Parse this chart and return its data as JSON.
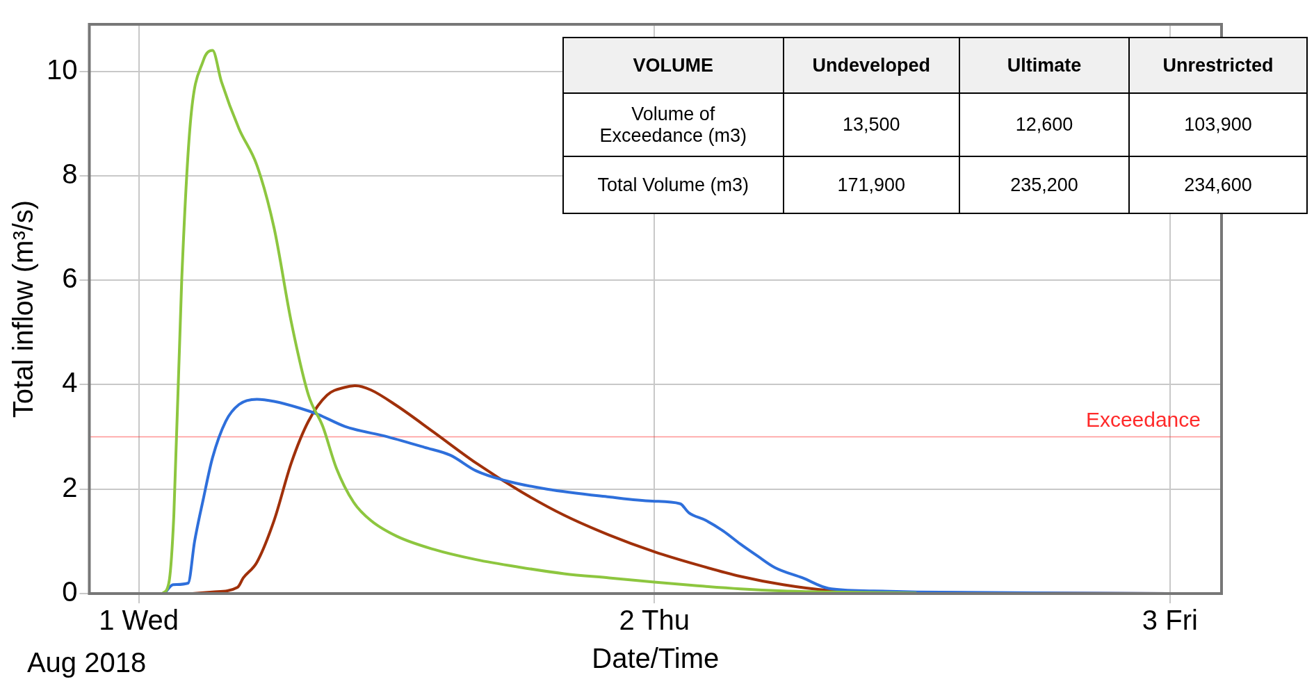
{
  "chart_data": {
    "type": "line",
    "xlabel": "Date/Time",
    "ylabel": "Total inflow (m³/s)",
    "xlim": [
      "2018-07-31T21:42",
      "2018-08-03T02:24"
    ],
    "ylim": [
      0,
      10.9
    ],
    "xticks": [
      {
        "value": "2018-08-01",
        "label": "1 Wed"
      },
      {
        "value": "2018-08-02",
        "label": "2 Thu"
      },
      {
        "value": "2018-08-03",
        "label": "3 Fri"
      }
    ],
    "yticks": [
      0,
      2,
      4,
      6,
      8,
      10
    ],
    "grid": true,
    "legend": false,
    "marker": "none",
    "line_style": "solid",
    "series": [
      {
        "color": "#8dc63f",
        "x": [
          "2018-08-01T01:06",
          "2018-08-01T01:24",
          "2018-08-01T01:38",
          "2018-08-01T02:00",
          "2018-08-01T02:24",
          "2018-08-01T03:00",
          "2018-08-01T03:26",
          "2018-08-01T03:51",
          "2018-08-01T04:40",
          "2018-08-01T05:30",
          "2018-08-01T06:18",
          "2018-08-01T07:06",
          "2018-08-01T07:54",
          "2018-08-01T08:34",
          "2018-08-01T09:12",
          "2018-08-01T10:00",
          "2018-08-01T10:48",
          "2018-08-01T12:00",
          "2018-08-01T13:42",
          "2018-08-01T15:42",
          "2018-08-01T17:48",
          "2018-08-01T19:48",
          "2018-08-01T21:54",
          "2018-08-02T00:00",
          "2018-08-02T02:00",
          "2018-08-02T04:00",
          "2018-08-02T06:00",
          "2018-08-02T08:06",
          "2018-08-02T12:12"
        ],
        "values": [
          0,
          0.2,
          1.5,
          6,
          9,
          10.2,
          10.4,
          9.8,
          8.9,
          8.2,
          7,
          5.2,
          3.8,
          3.2,
          2.4,
          1.75,
          1.4,
          1.1,
          0.85,
          0.65,
          0.5,
          0.38,
          0.3,
          0.22,
          0.15,
          0.09,
          0.05,
          0.03,
          0.01
        ]
      },
      {
        "color": "#2e6fdb",
        "x": [
          "2018-08-01T01:12",
          "2018-08-01T01:36",
          "2018-08-01T02:18",
          "2018-08-01T02:36",
          "2018-08-01T03:00",
          "2018-08-01T03:26",
          "2018-08-01T04:03",
          "2018-08-01T04:40",
          "2018-08-01T05:30",
          "2018-08-01T06:18",
          "2018-08-01T07:30",
          "2018-08-01T08:21",
          "2018-08-01T09:36",
          "2018-08-01T11:36",
          "2018-08-01T13:18",
          "2018-08-01T14:30",
          "2018-08-01T15:42",
          "2018-08-01T17:00",
          "2018-08-01T19:00",
          "2018-08-01T21:54",
          "2018-08-01T23:54",
          "2018-08-02T01:12",
          "2018-08-02T01:36",
          "2018-08-02T02:24",
          "2018-08-02T03:12",
          "2018-08-02T04:00",
          "2018-08-02T04:48",
          "2018-08-02T05:36",
          "2018-08-02T06:54",
          "2018-08-02T08:06",
          "2018-08-02T10:12",
          "2018-08-02T12:12",
          "2018-08-03T00:00"
        ],
        "values": [
          0,
          0.17,
          0.2,
          1.0,
          1.8,
          2.6,
          3.3,
          3.62,
          3.72,
          3.68,
          3.55,
          3.43,
          3.2,
          3.0,
          2.8,
          2.65,
          2.35,
          2.17,
          2.0,
          1.85,
          1.77,
          1.72,
          1.55,
          1.4,
          1.2,
          0.95,
          0.72,
          0.5,
          0.3,
          0.1,
          0.05,
          0.03,
          0
        ]
      },
      {
        "color": "#a0300a",
        "x": [
          "2018-08-01T02:30",
          "2018-08-01T03:26",
          "2018-08-01T04:36",
          "2018-08-01T04:52",
          "2018-08-01T05:30",
          "2018-08-01T06:18",
          "2018-08-01T07:06",
          "2018-08-01T07:54",
          "2018-08-01T08:46",
          "2018-08-01T09:36",
          "2018-08-01T10:06",
          "2018-08-01T10:48",
          "2018-08-01T12:00",
          "2018-08-01T13:42",
          "2018-08-01T15:42",
          "2018-08-01T17:48",
          "2018-08-01T19:48",
          "2018-08-01T21:54",
          "2018-08-02T00:00",
          "2018-08-02T02:00",
          "2018-08-02T04:00",
          "2018-08-02T06:00",
          "2018-08-02T08:06",
          "2018-08-02T10:12",
          "2018-08-03T00:00"
        ],
        "values": [
          0,
          0.03,
          0.12,
          0.3,
          0.6,
          1.4,
          2.5,
          3.3,
          3.8,
          3.95,
          3.98,
          3.9,
          3.6,
          3.1,
          2.5,
          1.95,
          1.5,
          1.12,
          0.8,
          0.55,
          0.33,
          0.17,
          0.06,
          0.02,
          0
        ]
      }
    ],
    "ref_lines": [
      {
        "axis": "y",
        "value": 3,
        "label": "Exceedance",
        "color": "#ff2a2a"
      }
    ],
    "annotations": [
      "Aug 2018",
      "VOLUME",
      "Undeveloped",
      "Ultimate",
      "Unrestricted",
      "Volume of Exceedance (m3)",
      "13,500",
      "12,600",
      "103,900",
      "Total Volume (m3)",
      "171,900",
      "235,200",
      "234,600"
    ]
  }
}
